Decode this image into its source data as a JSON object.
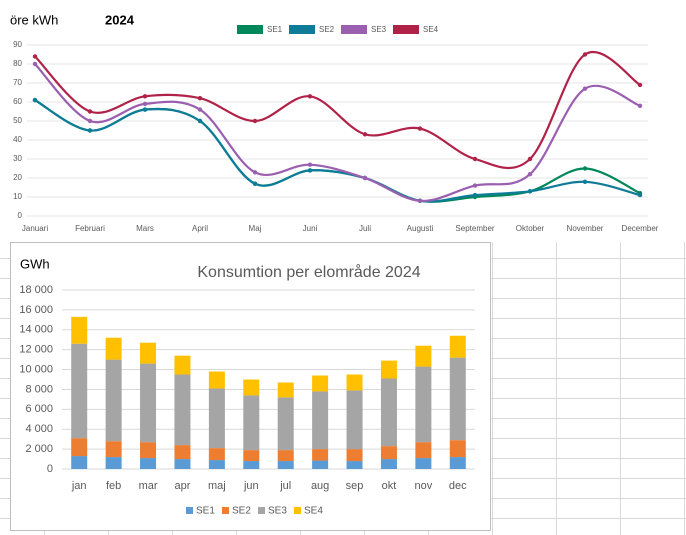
{
  "chart_data": [
    {
      "type": "line",
      "title": "2024",
      "ylabel": "öre kWh",
      "categories": [
        "Januari",
        "Februari",
        "Mars",
        "April",
        "Maj",
        "Juni",
        "Juli",
        "Augusti",
        "September",
        "Oktober",
        "November",
        "December"
      ],
      "series": [
        {
          "name": "SE1",
          "color": "#00875a",
          "values": [
            61,
            45,
            56,
            50,
            17,
            24,
            20,
            8,
            10,
            13,
            25,
            12
          ]
        },
        {
          "name": "SE2",
          "color": "#0e7c99",
          "values": [
            61,
            45,
            56,
            50,
            17,
            24,
            20,
            8,
            11,
            13,
            18,
            11
          ]
        },
        {
          "name": "SE3",
          "color": "#9b5fb0",
          "values": [
            80,
            50,
            59,
            56,
            23,
            27,
            20,
            8,
            16,
            22,
            67,
            58
          ]
        },
        {
          "name": "SE4",
          "color": "#b02248",
          "values": [
            84,
            55,
            63,
            62,
            50,
            63,
            43,
            46,
            30,
            30,
            85,
            69
          ]
        }
      ],
      "ylim": [
        0,
        90
      ],
      "yticks": [
        0,
        10,
        20,
        30,
        40,
        50,
        60,
        70,
        80,
        90
      ],
      "grid": true,
      "legend": "top"
    },
    {
      "type": "stacked-bar",
      "title": "Konsumtion per elområde 2024",
      "ylabel": "GWh",
      "categories": [
        "jan",
        "feb",
        "mar",
        "apr",
        "maj",
        "jun",
        "jul",
        "aug",
        "sep",
        "okt",
        "nov",
        "dec"
      ],
      "series": [
        {
          "name": "SE1",
          "color": "#5b9bd5",
          "values": [
            1300,
            1200,
            1100,
            1000,
            900,
            800,
            800,
            850,
            800,
            1000,
            1100,
            1200
          ]
        },
        {
          "name": "SE2",
          "color": "#ed7d31",
          "values": [
            1800,
            1600,
            1600,
            1400,
            1200,
            1100,
            1100,
            1150,
            1200,
            1300,
            1600,
            1700
          ]
        },
        {
          "name": "SE3",
          "color": "#a5a5a5",
          "values": [
            9500,
            8200,
            7900,
            7100,
            6000,
            5500,
            5300,
            5800,
            5900,
            6800,
            7600,
            8300
          ]
        },
        {
          "name": "SE4",
          "color": "#ffc000",
          "values": [
            2700,
            2200,
            2100,
            1900,
            1700,
            1600,
            1500,
            1600,
            1600,
            1800,
            2100,
            2200
          ]
        }
      ],
      "ylim": [
        0,
        18000
      ],
      "yticks": [
        0,
        {
          "value": 2000,
          "label": "2 000"
        },
        {
          "value": 4000,
          "label": "4 000"
        },
        {
          "value": 6000,
          "label": "6 000"
        },
        {
          "value": 8000,
          "label": "8 000"
        },
        {
          "value": 10000,
          "label": "10 000"
        },
        {
          "value": 12000,
          "label": "12 000"
        },
        {
          "value": 14000,
          "label": "14 000"
        },
        {
          "value": 16000,
          "label": "16 000"
        },
        {
          "value": 18000,
          "label": "18 000"
        }
      ],
      "grid": true,
      "legend": "bottom"
    }
  ]
}
